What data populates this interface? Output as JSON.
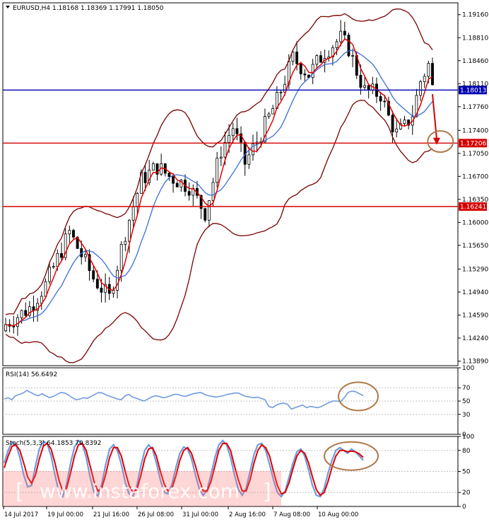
{
  "colors": {
    "background": "#ffffff",
    "axis": "#000000",
    "candle": "#000000",
    "ma_fast": "#e00000",
    "ma_slow": "#3a6fd8",
    "bands": "#7a0000",
    "level_blue": "#0000b0",
    "level_red": "#d40000",
    "annotation": "#b07848",
    "rsi": "#6f9be0",
    "stoch_main": "#6f9be0",
    "stoch_signal": "#e00000",
    "watermark": "#ff6a6a"
  },
  "chart_data": [
    {
      "type": "candlestick",
      "title": "EURUSD,H4  1.18168 1.18369 1.17991 1.18050",
      "ylim": [
        1.1382,
        1.1934
      ],
      "y_ticks": [
        "1.19160",
        "1.18810",
        "1.18460",
        "1.18110",
        "1.17760",
        "1.17400",
        "1.17050",
        "1.16700",
        "1.16350",
        "1.16000",
        "1.15650",
        "1.15290",
        "1.14940",
        "1.14590",
        "1.14240",
        "1.13890"
      ],
      "x_labels": [
        "14 Jul 2017",
        "19 Jul 00:00",
        "21 Jul 16:00",
        "26 Jul 08:00",
        "31 Jul 00:00",
        "2 Aug 16:00",
        "7 Aug 08:00",
        "10 Aug 00:00"
      ],
      "bars": 108,
      "close_path": [
        [
          0,
          1.1445
        ],
        [
          6,
          1.147
        ],
        [
          10,
          1.1505
        ],
        [
          16,
          1.1585
        ],
        [
          22,
          1.1515
        ],
        [
          26,
          1.1485
        ],
        [
          30,
          1.1585
        ],
        [
          34,
          1.1665
        ],
        [
          38,
          1.1685
        ],
        [
          41,
          1.167
        ],
        [
          46,
          1.1655
        ],
        [
          50,
          1.1615
        ],
        [
          54,
          1.171
        ],
        [
          57,
          1.1745
        ],
        [
          60,
          1.169
        ],
        [
          64,
          1.1735
        ],
        [
          68,
          1.1785
        ],
        [
          72,
          1.185
        ],
        [
          76,
          1.1825
        ],
        [
          80,
          1.186
        ],
        [
          84,
          1.188
        ],
        [
          86,
          1.1865
        ],
        [
          88,
          1.183
        ],
        [
          90,
          1.18
        ],
        [
          94,
          1.1795
        ],
        [
          96,
          1.176
        ],
        [
          98,
          1.1735
        ],
        [
          100,
          1.1745
        ],
        [
          102,
          1.1765
        ],
        [
          104,
          1.1815
        ],
        [
          106,
          1.184
        ],
        [
          107,
          1.1805
        ]
      ],
      "levels": [
        {
          "label": "1.18013",
          "value": 1.18013,
          "color": "#0000b0"
        },
        {
          "label": "1.17206",
          "value": 1.17206,
          "color": "#d40000"
        },
        {
          "label": "1.16241",
          "value": 1.16241,
          "color": "#d40000"
        }
      ],
      "forecast_arrow": {
        "from_bar": 107,
        "from": 1.1795,
        "to": 1.1718
      },
      "target_ellipse": {
        "bar": 109,
        "value": 1.1723
      }
    },
    {
      "type": "line",
      "title": "RSI(14) 56.6492",
      "ylim": [
        0,
        100
      ],
      "y_ticks": [
        "100",
        "70",
        "50",
        "30",
        "0"
      ],
      "values": [
        53,
        55,
        52,
        58,
        60,
        62,
        66,
        63,
        60,
        58,
        61,
        58,
        55,
        57,
        60,
        63,
        62,
        59,
        55,
        52,
        53,
        55,
        54,
        57,
        60,
        63,
        62,
        59,
        57,
        55,
        53,
        52,
        58,
        60,
        56,
        54,
        52,
        50,
        53,
        56,
        58,
        57,
        55,
        56,
        58,
        60,
        60,
        58,
        57,
        59,
        61,
        62,
        63,
        60,
        58,
        57,
        56,
        57,
        58,
        60,
        61,
        62,
        62,
        59,
        57,
        56,
        55,
        56,
        54,
        52,
        42,
        40,
        44,
        46,
        47,
        45,
        38,
        40,
        42,
        44,
        40,
        42,
        41,
        40,
        42,
        45,
        48,
        50,
        50,
        49,
        55,
        63,
        65,
        64,
        61,
        58
      ]
    },
    {
      "type": "line",
      "title": "Stoch(5,3,3) 64.1853 70.8392",
      "ylim": [
        0,
        100
      ],
      "y_ticks": [
        "100",
        "80",
        "50",
        "20",
        "0"
      ],
      "series": [
        {
          "values": [
            62,
            80,
            92,
            88,
            70,
            45,
            28,
            30,
            58,
            82,
            93,
            90,
            72,
            45,
            20,
            14,
            32,
            62,
            85,
            94,
            90,
            70,
            42,
            20,
            15,
            32,
            60,
            82,
            88,
            80,
            60,
            35,
            18,
            14,
            30,
            58,
            80,
            88,
            82,
            62,
            38,
            20,
            18,
            32,
            56,
            76,
            85,
            82,
            68,
            45,
            25,
            16,
            24,
            46,
            70,
            88,
            94,
            88,
            70,
            45,
            24,
            16,
            26,
            50,
            74,
            88,
            90,
            80,
            60,
            38,
            20,
            14,
            22,
            42,
            62,
            78,
            82,
            72,
            52,
            30,
            16,
            14,
            26,
            48,
            66,
            80,
            84,
            80,
            76,
            82,
            78,
            72,
            66
          ]
        },
        {
          "values": [
            55,
            72,
            86,
            88,
            80,
            62,
            42,
            33,
            45,
            68,
            86,
            90,
            82,
            62,
            38,
            22,
            26,
            48,
            72,
            88,
            90,
            80,
            58,
            36,
            22,
            26,
            46,
            70,
            84,
            84,
            72,
            50,
            30,
            20,
            24,
            44,
            68,
            82,
            84,
            72,
            50,
            32,
            22,
            26,
            44,
            66,
            80,
            84,
            76,
            58,
            38,
            22,
            22,
            36,
            58,
            80,
            90,
            90,
            80,
            58,
            38,
            22,
            22,
            38,
            62,
            80,
            88,
            84,
            72,
            50,
            30,
            18,
            20,
            34,
            54,
            72,
            80,
            76,
            62,
            42,
            24,
            16,
            20,
            36,
            56,
            72,
            80,
            80,
            78,
            79,
            78,
            75,
            70
          ]
        }
      ]
    }
  ],
  "watermark": "www.instaforex.com",
  "price_axis_labels": {
    "level_1": "1.18013",
    "level_2": "1.17206",
    "level_3": "1.16241"
  }
}
